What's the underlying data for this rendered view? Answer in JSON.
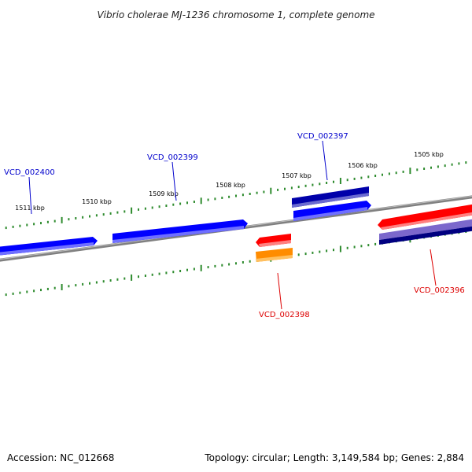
{
  "title": "Vibrio cholerae MJ-1236 chromosome 1, complete genome",
  "footer": {
    "accession": "Accession: NC_012668",
    "summary": "Topology: circular; Length: 3,149,584 bp; Genes: 2,884"
  },
  "colors": {
    "backbone": "#808080",
    "tick": "#2e8b2e",
    "gene_plus": "#0000ff",
    "gene_plus_dark": "#00007a",
    "gene_minus": "#ff0000",
    "gene_minus_alt": "#ff8c00",
    "gene_minus_light": "#7b68cc",
    "gene_minus_dark": "#000080"
  },
  "ruler": [
    "1505 kbp",
    "1506 kbp",
    "1507 kbp",
    "1508 kbp",
    "1509 kbp",
    "1510 kbp",
    "1511 kbp"
  ],
  "gene_labels": [
    {
      "id": "VCD_002400",
      "strand": "+"
    },
    {
      "id": "VCD_002399",
      "strand": "+"
    },
    {
      "id": "VCD_002397",
      "strand": "+"
    },
    {
      "id": "VCD_002398",
      "strand": "-"
    },
    {
      "id": "VCD_002396",
      "strand": "-"
    }
  ]
}
